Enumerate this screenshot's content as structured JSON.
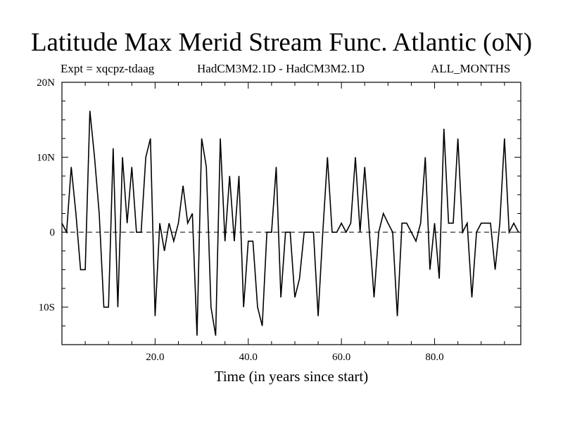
{
  "header": {
    "title": "Latitude Max Merid Stream Func. Atlantic (oN)",
    "expt": "Expt = xqcpz-tdaag",
    "models": "HadCM3M2.1D - HadCM3M2.1D",
    "period": "ALL_MONTHS"
  },
  "chart_data": {
    "type": "line",
    "title": "Latitude Max Merid Stream Func. Atlantic (oN)",
    "xlabel": "Time (in years since start)",
    "ylabel": "",
    "xlim": [
      0,
      98.5
    ],
    "ylim": [
      -15,
      20
    ],
    "x_ticks": [
      {
        "value": 20,
        "label": "20.0"
      },
      {
        "value": 40,
        "label": "40.0"
      },
      {
        "value": 60,
        "label": "60.0"
      },
      {
        "value": 80,
        "label": "80.0"
      }
    ],
    "y_ticks": [
      {
        "value": 20,
        "label": "20N"
      },
      {
        "value": 10,
        "label": "10N"
      },
      {
        "value": 0,
        "label": "0"
      },
      {
        "value": -10,
        "label": "10S"
      }
    ],
    "zero_line": true,
    "line_color": "#000000",
    "series": [
      {
        "x": [
          0,
          1,
          2,
          3,
          4,
          5,
          6,
          7,
          8,
          9,
          10,
          11,
          12,
          13,
          14,
          15,
          16,
          17,
          18,
          19,
          20,
          21,
          22,
          23,
          24,
          25,
          26,
          27,
          28,
          29,
          30,
          31,
          32,
          33,
          34,
          35,
          36,
          37,
          38,
          39,
          40,
          41,
          42,
          43,
          44,
          45,
          46,
          47,
          48,
          49,
          50,
          51,
          52,
          53,
          54,
          55,
          56,
          57,
          58,
          59,
          60,
          61,
          62,
          63,
          64,
          65,
          66,
          67,
          68,
          69,
          70,
          71,
          72,
          73,
          74,
          75,
          76,
          77,
          78,
          79,
          80,
          81,
          82,
          83,
          84,
          85,
          86,
          87,
          88,
          89,
          90,
          91,
          92,
          93,
          94,
          95,
          96,
          97,
          98
        ],
        "values": [
          1.2,
          0,
          8.7,
          2.5,
          -5,
          -5,
          16.2,
          10,
          2.5,
          -10,
          -10,
          11.2,
          -10,
          10,
          1.2,
          8.7,
          0,
          0,
          10,
          12.5,
          -11.2,
          1.2,
          -2.5,
          1.2,
          -1.2,
          1.2,
          6.2,
          1.2,
          2.5,
          -13.8,
          12.5,
          8.7,
          -10,
          -13.8,
          12.5,
          -1.2,
          7.5,
          -1.2,
          7.5,
          -10,
          -1.2,
          -1.2,
          -10,
          -12.5,
          0,
          0,
          8.7,
          -8.7,
          0,
          0,
          -8.7,
          -6.2,
          0,
          0,
          0,
          -11.2,
          0,
          10,
          0,
          0,
          1.2,
          0,
          1.2,
          10,
          0,
          8.7,
          0,
          -8.7,
          0,
          2.5,
          1.2,
          0,
          -11.2,
          1.2,
          1.2,
          0,
          -1.2,
          1.2,
          10,
          -5,
          1.2,
          -6.2,
          13.8,
          1.2,
          1.2,
          12.5,
          0,
          1.2,
          -8.7,
          0,
          1.2,
          1.2,
          1.2,
          -5,
          1.2,
          12.5,
          0,
          1.2,
          0
        ]
      }
    ]
  }
}
